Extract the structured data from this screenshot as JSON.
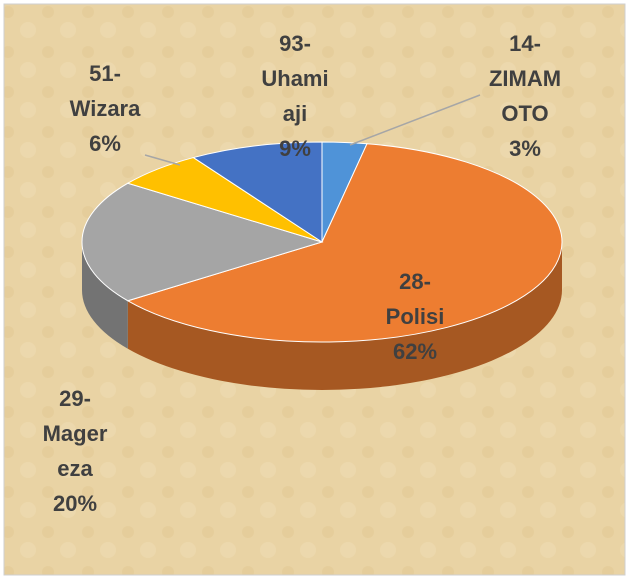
{
  "chart_data": {
    "type": "pie3d",
    "categories": [
      "14-ZIMAMOTO",
      "28-Polisi",
      "29-Magereza",
      "51-Wizara",
      "93-Uhamiaji"
    ],
    "values": [
      3,
      62,
      20,
      6,
      9
    ],
    "value_labels": [
      "3%",
      "62%",
      "20%",
      "6%",
      "9%"
    ],
    "colors": [
      "#4f93d8",
      "#ed7d31",
      "#a5a5a5",
      "#ffc000",
      "#4472c4"
    ]
  }
}
